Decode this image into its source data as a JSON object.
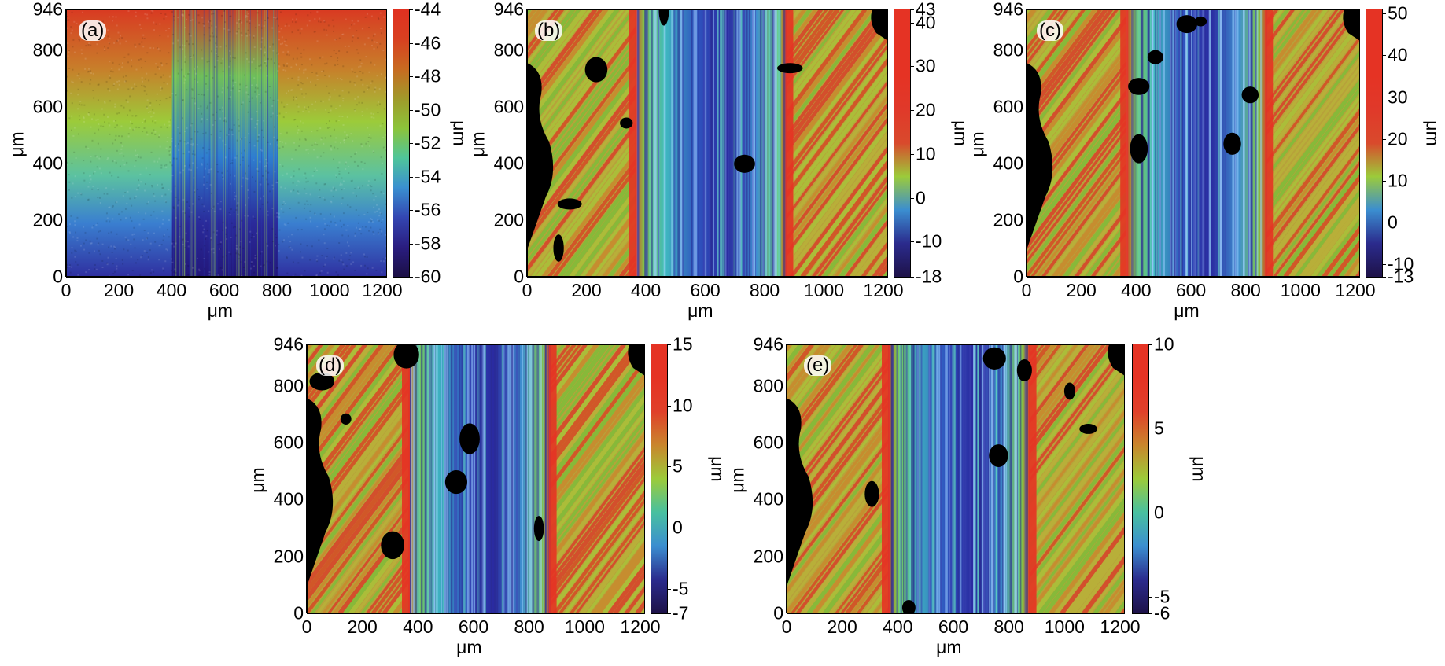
{
  "figure": {
    "panels": [
      {
        "label": "(a)",
        "x_ticks": [
          "0",
          "200",
          "400",
          "600",
          "800",
          "1000",
          "1200"
        ],
        "y_ticks": [
          "946",
          "800",
          "600",
          "400",
          "200",
          "0"
        ],
        "x_axis_label": "μm",
        "y_axis_label": "μm",
        "colorbar": {
          "label": "μm",
          "ticks": [
            "-44",
            "-46",
            "-48",
            "-50",
            "-52",
            "-54",
            "-56",
            "-58",
            "-60"
          ],
          "max": -44,
          "min": -60,
          "stops": [
            "#e03020",
            "#d84020",
            "#c86a20",
            "#a09a2a",
            "#8cc43a",
            "#4fc59a",
            "#3a90d0",
            "#3346b2",
            "#2a1d80",
            "#1b0f45"
          ]
        },
        "style": "gradient"
      },
      {
        "label": "(b)",
        "x_ticks": [
          "0",
          "200",
          "400",
          "600",
          "800",
          "1000",
          "1200"
        ],
        "y_ticks": [
          "946",
          "800",
          "600",
          "400",
          "200",
          "0"
        ],
        "x_axis_label": "μm",
        "y_axis_label": "μm",
        "colorbar": {
          "label": "μm",
          "ticks": [
            "43",
            "40",
            "30",
            "20",
            "10",
            "0",
            "-10",
            "-18"
          ],
          "max": 43,
          "min": -18,
          "stops": [
            "#e53324",
            "#e53324",
            "#e53324",
            "#e0392a",
            "#d94a2c",
            "#9ccb3a",
            "#3b8ed0",
            "#2b2b8d",
            "#1e1248"
          ]
        },
        "style": "worn"
      },
      {
        "label": "(c)",
        "x_ticks": [
          "0",
          "200",
          "400",
          "600",
          "800",
          "1000",
          "1200"
        ],
        "y_ticks": [
          "946",
          "800",
          "600",
          "400",
          "200",
          "0"
        ],
        "x_axis_label": "μm",
        "y_axis_label": "μm",
        "colorbar": {
          "label": "μm",
          "ticks": [
            "50",
            "40",
            "30",
            "20",
            "10",
            "0",
            "-10",
            "-13"
          ],
          "max": 51,
          "min": -13,
          "stops": [
            "#e53324",
            "#e53324",
            "#e53324",
            "#e0392a",
            "#d94a2c",
            "#9ccb3a",
            "#3b8ed0",
            "#2b2b8d",
            "#1e1248"
          ]
        },
        "style": "worn"
      },
      {
        "label": "(d)",
        "x_ticks": [
          "0",
          "200",
          "400",
          "600",
          "800",
          "1000",
          "1200"
        ],
        "y_ticks": [
          "946",
          "800",
          "600",
          "400",
          "200",
          "0"
        ],
        "x_axis_label": "μm",
        "y_axis_label": "μm",
        "colorbar": {
          "label": "μm",
          "ticks": [
            "15",
            "10",
            "5",
            "0",
            "-5",
            "-7"
          ],
          "max": 15,
          "min": -7,
          "stops": [
            "#e53324",
            "#e53324",
            "#e0402a",
            "#c9862c",
            "#9ccb3a",
            "#48c0a0",
            "#3b8ed0",
            "#2b2b8d",
            "#1e1248"
          ]
        },
        "style": "worn"
      },
      {
        "label": "(e)",
        "x_ticks": [
          "0",
          "200",
          "400",
          "600",
          "800",
          "1000",
          "1200"
        ],
        "y_ticks": [
          "946",
          "800",
          "600",
          "400",
          "200",
          "0"
        ],
        "x_axis_label": "μm",
        "y_axis_label": "μm",
        "colorbar": {
          "label": "μm",
          "ticks": [
            "10",
            "5",
            "0",
            "-5",
            "-6"
          ],
          "max": 10,
          "min": -6,
          "stops": [
            "#e53324",
            "#e53324",
            "#e0402a",
            "#c9862c",
            "#9ccb3a",
            "#48c0a0",
            "#3b8ed0",
            "#2b2b8d",
            "#1e1248"
          ]
        },
        "style": "worn"
      }
    ]
  }
}
